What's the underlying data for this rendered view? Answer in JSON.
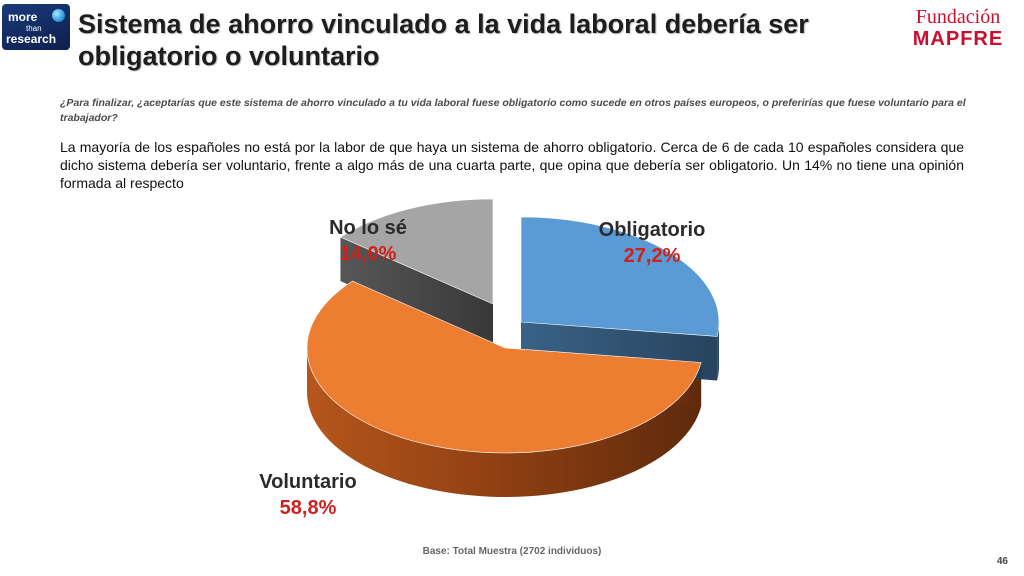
{
  "logo_left": {
    "line1": "more",
    "line2": "than",
    "line3": "research"
  },
  "title": "Sistema de ahorro vinculado a la vida laboral debería ser obligatorio o voluntario",
  "logo_right": {
    "line1": "Fundación",
    "line2": "MAPFRE"
  },
  "question": "¿Para finalizar, ¿aceptarías que este sistema de ahorro vinculado a tu vida laboral fuese obligatorio como sucede en otros países europeos, o preferirías que fuese voluntario para el trabajador?",
  "summary": "La mayoría de los españoles no está por la labor de que haya un sistema de ahorro obligatorio. Cerca de 6 de cada 10 españoles considera que dicho sistema debería ser voluntario, frente a algo más de una cuarta parte, que opina que debería ser obligatorio. Un 14% no tiene una opinión formada al respecto",
  "chart_data": {
    "type": "pie",
    "title": "",
    "slices": [
      {
        "label": "Obligatorio",
        "value": 27.2,
        "display": "27,2%",
        "color": "#5b9bd5"
      },
      {
        "label": "Voluntario",
        "value": 58.8,
        "display": "58,8%",
        "color": "#ed7d31"
      },
      {
        "label": "No lo sé",
        "value": 14.0,
        "display": "14,0%",
        "color": "#a5a5a5"
      }
    ],
    "exploded": true,
    "three_d": true,
    "legend": "none",
    "label_placement": "outside"
  },
  "base": "Base: Total Muestra (2702 individuos)",
  "page_number": "46"
}
